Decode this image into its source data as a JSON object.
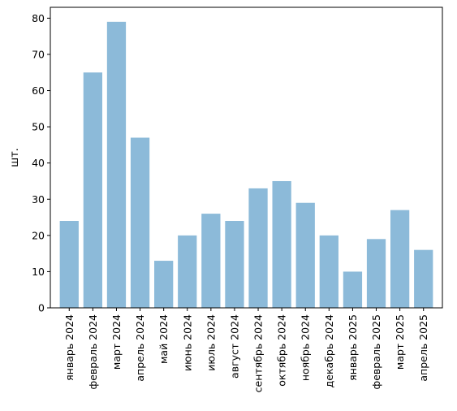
{
  "chart_data": {
    "type": "bar",
    "title": "",
    "xlabel": "",
    "ylabel": "шт.",
    "ylim": [
      0,
      83
    ],
    "yticks": [
      0,
      10,
      20,
      30,
      40,
      50,
      60,
      70,
      80
    ],
    "grid": false,
    "legend": "none",
    "bar_color": "#8cbad9",
    "categories": [
      "январь 2024",
      "февраль 2024",
      "март 2024",
      "апрель 2024",
      "май 2024",
      "июнь 2024",
      "июль 2024",
      "август 2024",
      "сентябрь 2024",
      "октябрь 2024",
      "ноябрь 2024",
      "декабрь 2024",
      "январь 2025",
      "февраль 2025",
      "март 2025",
      "апрель 2025"
    ],
    "values": [
      24,
      65,
      79,
      47,
      13,
      20,
      26,
      24,
      33,
      35,
      29,
      20,
      10,
      19,
      27,
      16
    ]
  }
}
